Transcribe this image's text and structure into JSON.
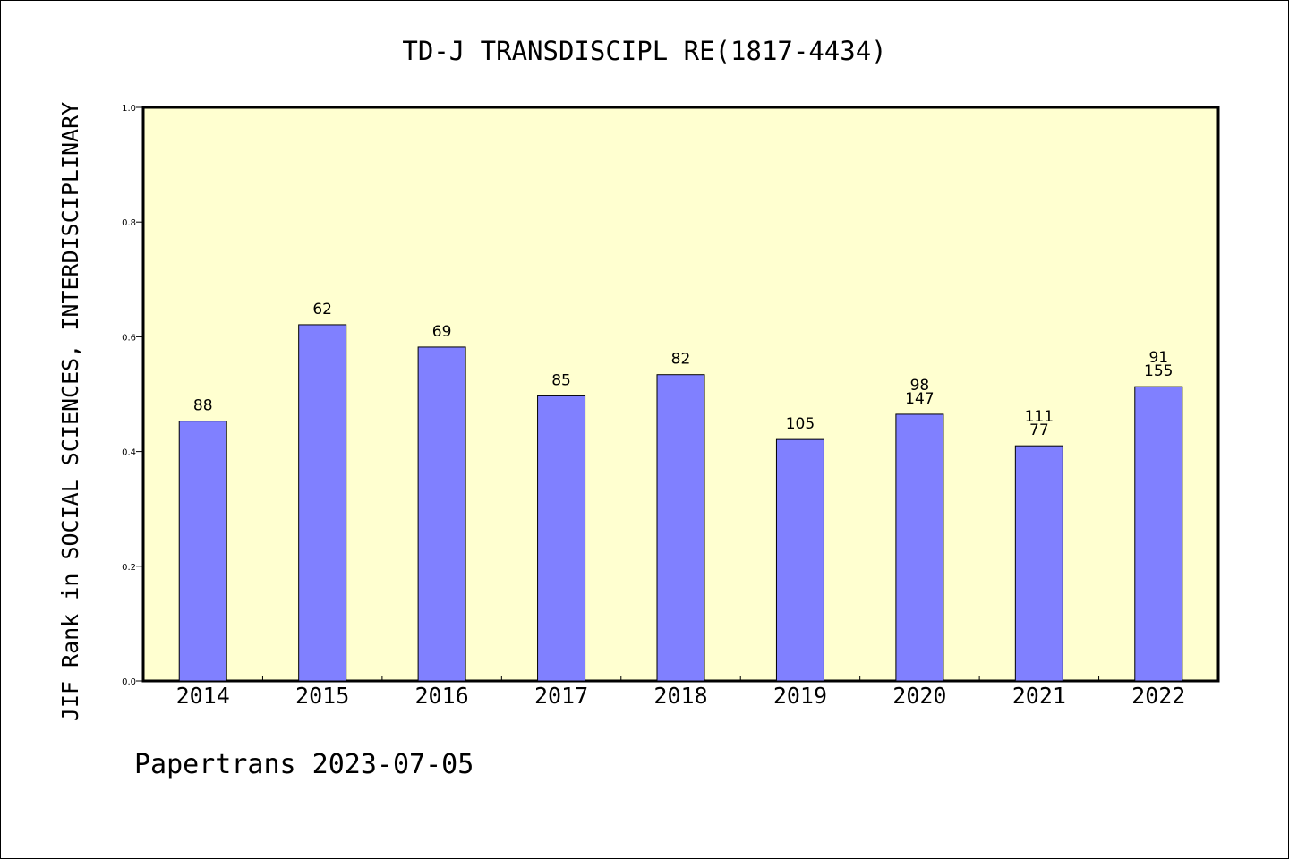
{
  "chart_data": {
    "type": "bar",
    "title": "TD-J TRANSDISCIPL RE(1817-4434)",
    "ylabel": "JIF Rank in SOCIAL SCIENCES, INTERDISCIPLINARY",
    "xlabel": "",
    "categories": [
      "2014",
      "2015",
      "2016",
      "2017",
      "2018",
      "2019",
      "2020",
      "2021",
      "2022"
    ],
    "values": [
      0.453,
      0.621,
      0.582,
      0.497,
      0.534,
      0.421,
      0.465,
      0.41,
      0.513
    ],
    "bar_labels": [
      [
        "88"
      ],
      [
        "62"
      ],
      [
        "69"
      ],
      [
        "85"
      ],
      [
        "82"
      ],
      [
        "105"
      ],
      [
        "98",
        "147"
      ],
      [
        "111",
        "77"
      ],
      [
        "91",
        "155"
      ]
    ],
    "ylim": [
      0.0,
      1.0
    ],
    "yticks": [
      "0.0",
      "0.2",
      "0.4",
      "0.6",
      "0.8",
      "1.0"
    ],
    "grid": false,
    "legend": "none",
    "colors": {
      "bar": "#8080ff",
      "plot_background": "#ffffd0",
      "axis": "#000000"
    }
  },
  "footer": {
    "credit": "Papertrans 2023-07-05"
  }
}
